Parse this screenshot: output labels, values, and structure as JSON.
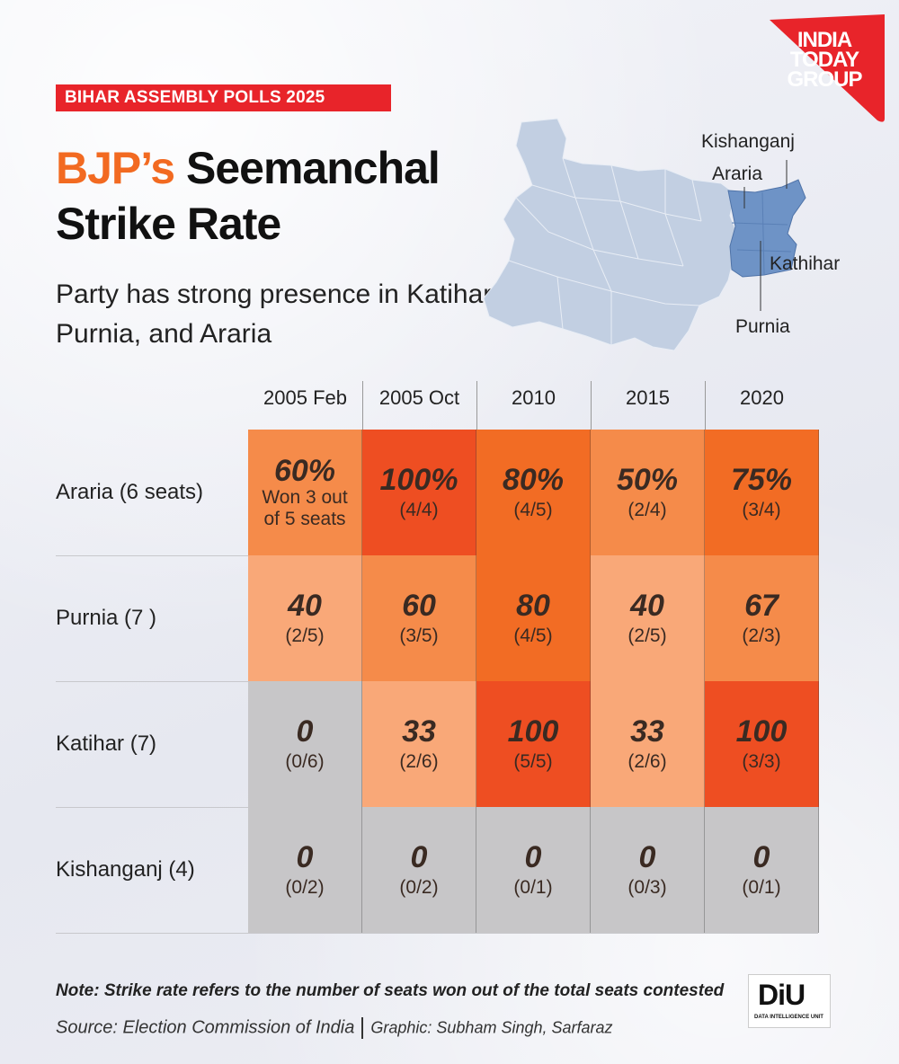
{
  "header": {
    "tag": "BIHAR ASSEMBLY POLLS 2025",
    "title_accent": "BJP’s",
    "title_rest": " Seemanchal",
    "title_line2": "Strike Rate",
    "subtitle": "Party has strong presence in Katihar, Purnia, and Araria"
  },
  "logo": {
    "line1": "INDIA",
    "line2": "TODAY",
    "line3": "GROUP"
  },
  "map": {
    "labels": {
      "kishanganj": "Kishanganj",
      "araria": "Araria",
      "kathihar": "Kathihar",
      "purnia": "Purnia"
    },
    "base_color": "#c2cfe2",
    "highlight_color": "#6e93c6"
  },
  "colors": {
    "level_100": "#ee4e22",
    "level_high": "#f26c24",
    "level_mid": "#f58b4a",
    "level_low": "#f9a878",
    "zero": "#c7c6c8"
  },
  "chart_data": {
    "type": "heatmap",
    "columns": [
      "2005 Feb",
      "2005 Oct",
      "2010",
      "2015",
      "2020"
    ],
    "rows": [
      {
        "label": "Araria (6 seats)",
        "cells": [
          {
            "value": 60,
            "display": "60%",
            "sub": "Won 3 out of 5 seats"
          },
          {
            "value": 100,
            "display": "100%",
            "sub": "(4/4)"
          },
          {
            "value": 80,
            "display": "80%",
            "sub": "(4/5)"
          },
          {
            "value": 50,
            "display": "50%",
            "sub": "(2/4)"
          },
          {
            "value": 75,
            "display": "75%",
            "sub": "(3/4)"
          }
        ]
      },
      {
        "label": "Purnia (7 )",
        "cells": [
          {
            "value": 40,
            "display": "40",
            "sub": "(2/5)"
          },
          {
            "value": 60,
            "display": "60",
            "sub": "(3/5)"
          },
          {
            "value": 80,
            "display": "80",
            "sub": "(4/5)"
          },
          {
            "value": 40,
            "display": "40",
            "sub": "(2/5)"
          },
          {
            "value": 67,
            "display": "67",
            "sub": "(2/3)"
          }
        ]
      },
      {
        "label": "Katihar (7)",
        "cells": [
          {
            "value": 0,
            "display": "0",
            "sub": "(0/6)"
          },
          {
            "value": 33,
            "display": "33",
            "sub": "(2/6)"
          },
          {
            "value": 100,
            "display": "100",
            "sub": "(5/5)"
          },
          {
            "value": 33,
            "display": "33",
            "sub": "(2/6)"
          },
          {
            "value": 100,
            "display": "100",
            "sub": "(3/3)"
          }
        ]
      },
      {
        "label": "Kishanganj (4)",
        "cells": [
          {
            "value": 0,
            "display": "0",
            "sub": "(0/2)"
          },
          {
            "value": 0,
            "display": "0",
            "sub": "(0/2)"
          },
          {
            "value": 0,
            "display": "0",
            "sub": "(0/1)"
          },
          {
            "value": 0,
            "display": "0",
            "sub": "(0/3)"
          },
          {
            "value": 0,
            "display": "0",
            "sub": "(0/1)"
          }
        ]
      }
    ]
  },
  "footer": {
    "note": "Note: Strike rate refers to the number of seats won out of the total seats contested",
    "source": "Source: Election Commission of India",
    "graphic": "Graphic: Subham Singh, Sarfaraz",
    "diu_big": "DiU",
    "diu_small": "DATA INTELLIGENCE UNIT"
  }
}
